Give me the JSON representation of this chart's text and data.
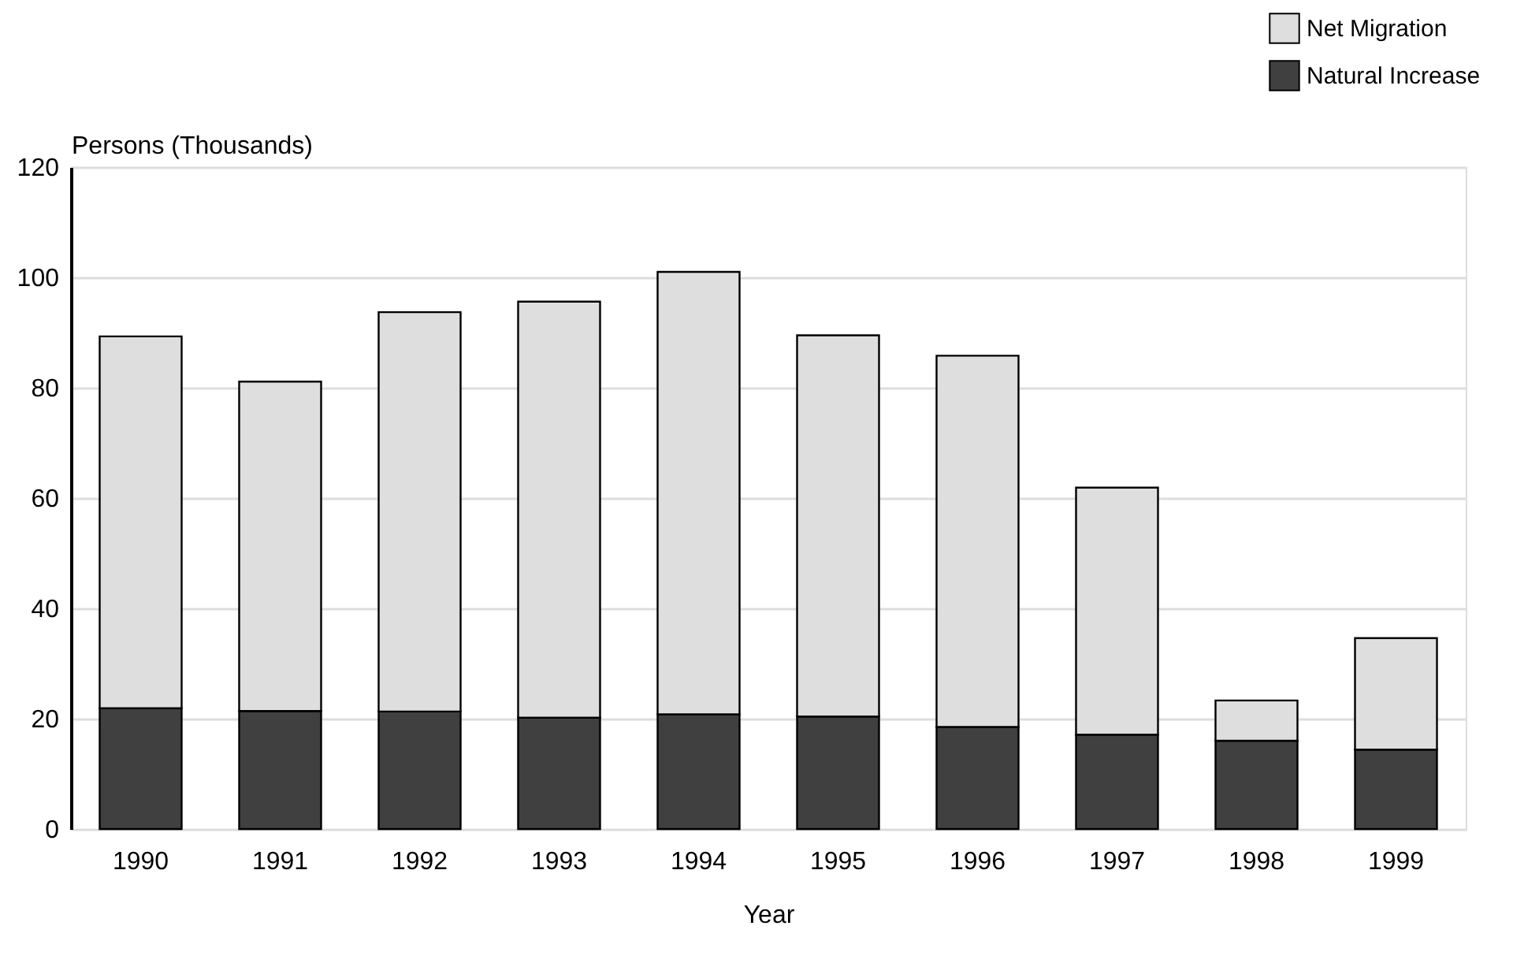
{
  "chart_data": {
    "type": "bar",
    "stacked": true,
    "xlabel": "Year",
    "ylabel": "Persons (Thousands)",
    "categories": [
      "1990",
      "1991",
      "1992",
      "1993",
      "1994",
      "1995",
      "1996",
      "1997",
      "1998",
      "1999"
    ],
    "series": [
      {
        "name": "Natural Increase",
        "color": "#404040",
        "values": [
          21.9,
          21.4,
          21.3,
          20.2,
          20.8,
          20.4,
          18.5,
          17.1,
          16.0,
          14.4
        ]
      },
      {
        "name": "Net Migration",
        "color": "#dedede",
        "values": [
          67.4,
          59.7,
          72.4,
          75.4,
          80.2,
          69.1,
          67.3,
          44.8,
          7.3,
          20.2
        ]
      }
    ],
    "ylim": [
      0,
      120
    ],
    "yticks": [
      0,
      20,
      40,
      60,
      80,
      100,
      120
    ],
    "grid": "y",
    "legend": "top right"
  }
}
